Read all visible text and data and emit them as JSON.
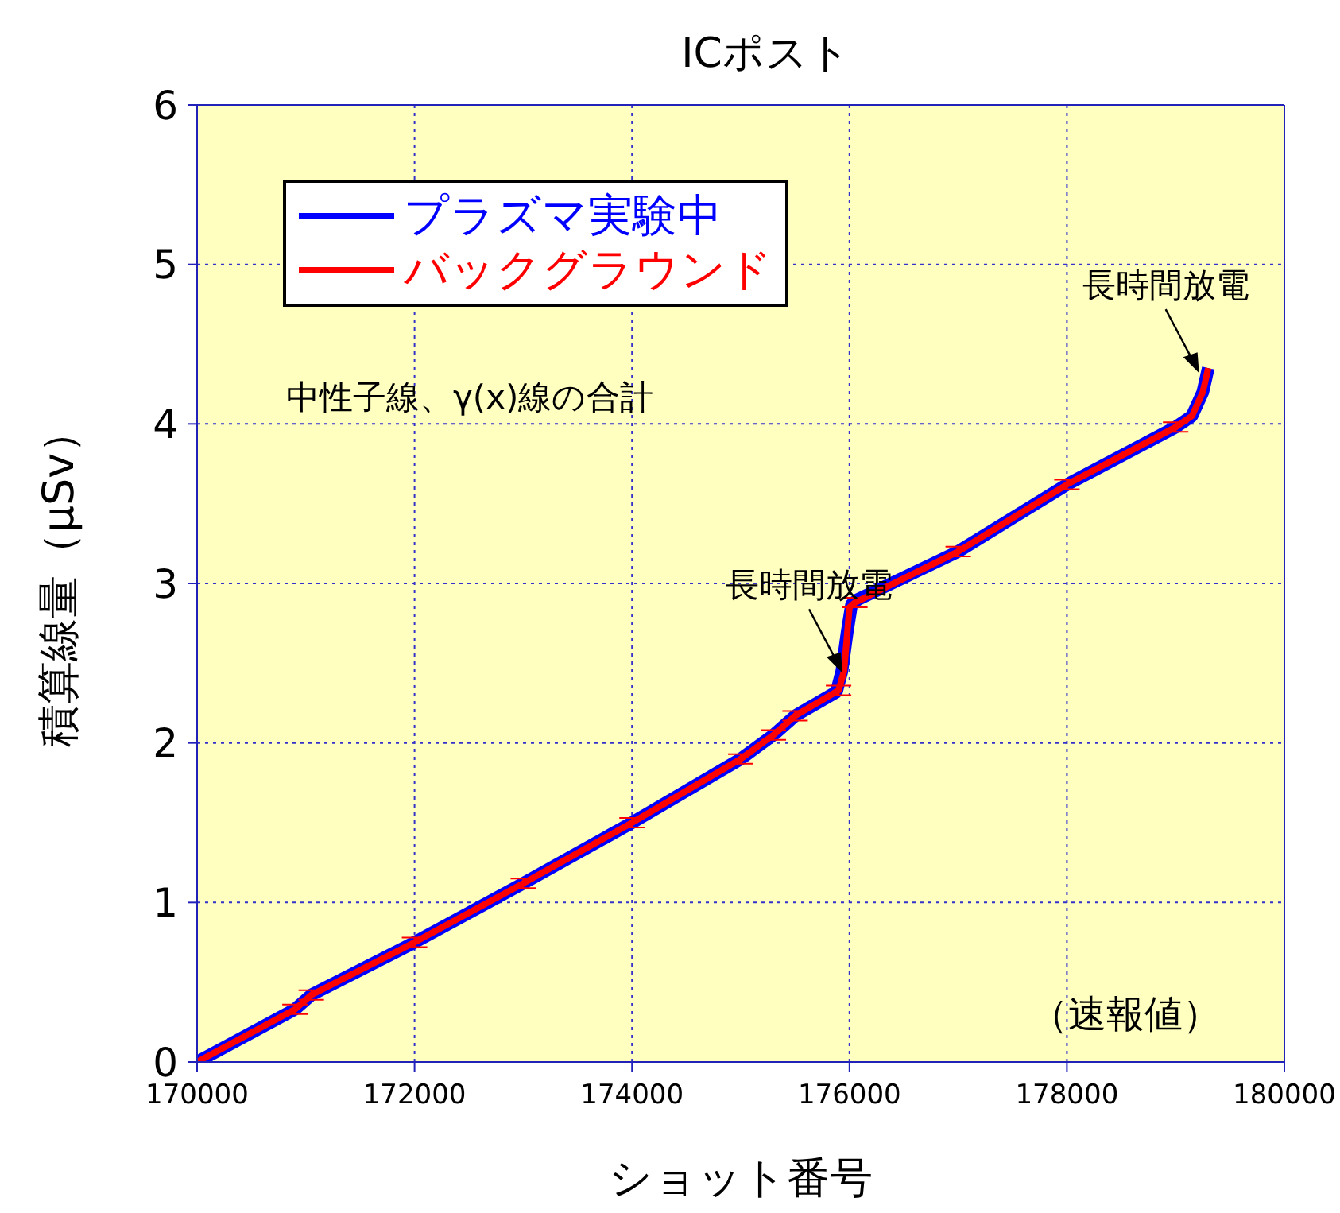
{
  "chart_data": {
    "type": "line",
    "title": "ICポスト",
    "xlabel": "ショット番号",
    "ylabel": "積算線量（μSv）",
    "xlim": [
      170000,
      180000
    ],
    "xticks": [
      170000,
      172000,
      174000,
      176000,
      178000,
      180000
    ],
    "ylim": [
      0,
      6
    ],
    "yticks": [
      0,
      1,
      2,
      3,
      4,
      5,
      6
    ],
    "grid": true,
    "legend": "top left",
    "marker": "none",
    "line_style": "solid",
    "series": [
      {
        "name": "プラズマ実験中",
        "color": "#0000ff",
        "x": [
          170000,
          170900,
          171050,
          172000,
          173000,
          174000,
          175000,
          175300,
          175500,
          175880,
          175930,
          175980,
          176020,
          176080,
          177000,
          178000,
          179000,
          179150,
          179250,
          179300
        ],
        "values": [
          0,
          0.33,
          0.42,
          0.75,
          1.12,
          1.5,
          1.9,
          2.05,
          2.17,
          2.32,
          2.45,
          2.7,
          2.87,
          2.9,
          3.2,
          3.62,
          3.98,
          4.05,
          4.2,
          4.35
        ]
      },
      {
        "name": "バックグラウンド",
        "color": "#ff0000",
        "x": [
          170000,
          170900,
          171050,
          172000,
          173000,
          174000,
          175000,
          175300,
          175500,
          175900,
          175950,
          176000,
          176050,
          177000,
          178000,
          179000,
          179150,
          179250,
          179300
        ],
        "values": [
          0,
          0.33,
          0.42,
          0.75,
          1.12,
          1.5,
          1.9,
          2.05,
          2.17,
          2.33,
          2.45,
          2.85,
          2.88,
          3.2,
          3.62,
          3.98,
          4.05,
          4.2,
          4.35
        ],
        "errors": [
          null,
          0.03,
          0.03,
          0.03,
          0.03,
          0.03,
          0.03,
          0.03,
          0.03,
          0.03,
          null,
          null,
          0.03,
          0.03,
          0.03,
          0.03,
          null,
          null,
          null
        ]
      }
    ],
    "annotations": [
      {
        "text": "長時間放電",
        "x": 175950,
        "y": 2.42
      },
      {
        "text": "長時間放電",
        "x": 179230,
        "y": 4.3
      },
      "中性子線、γ(x)線の合計",
      "（速報値）"
    ]
  }
}
